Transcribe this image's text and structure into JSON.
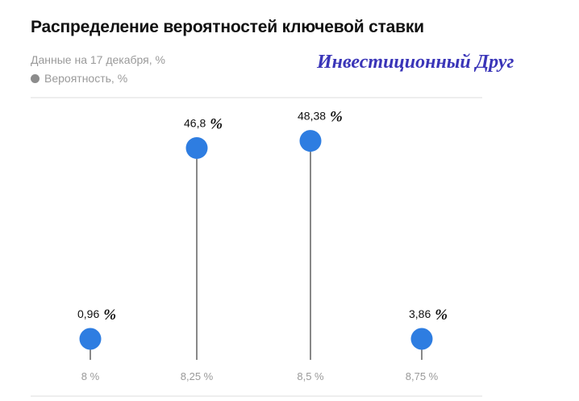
{
  "header": {
    "title": "Распределение вероятностей ключевой ставки",
    "subtitle": "Данные на 17 декабря, %",
    "legend_label": "Вероятность, %"
  },
  "watermark": "Инвестиционный Друг",
  "colors": {
    "marker": "#2e7de1",
    "legend_dot": "#8c8c8c",
    "stem": "#111111",
    "grid": "#dddddd"
  },
  "chart_data": {
    "type": "scatter",
    "categories": [
      "8 %",
      "8,25 %",
      "8,5 %",
      "8,75 %"
    ],
    "values": [
      0.96,
      46.8,
      48.38,
      3.86
    ],
    "value_labels": [
      "0,96",
      "46,8",
      "48,38",
      "3,86"
    ],
    "value_suffix": "%",
    "ylim": [
      0,
      50
    ],
    "legend": "top-left",
    "grid": false
  }
}
